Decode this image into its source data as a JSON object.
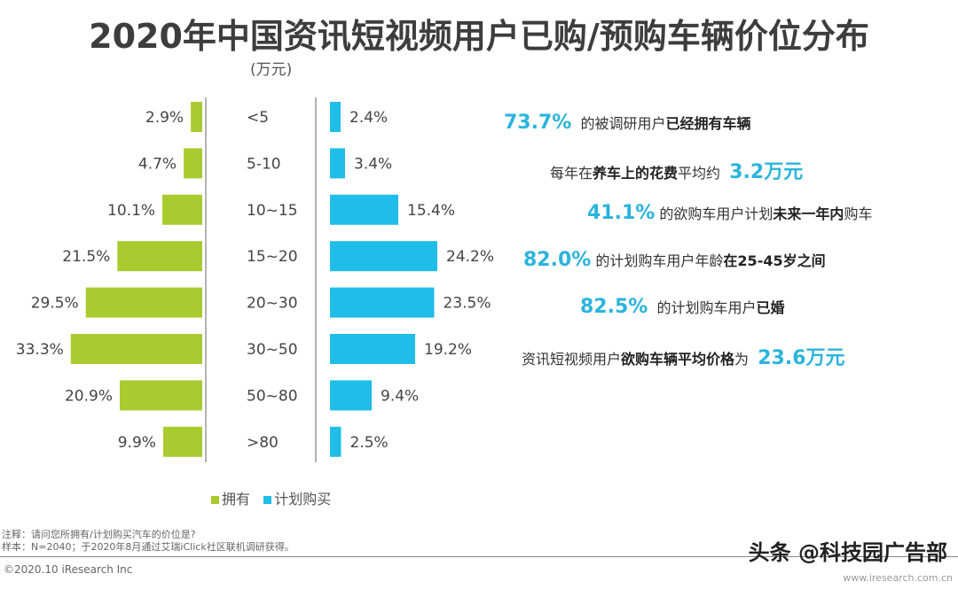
{
  "title": "2020年中国资讯短视频用户已购/预购车辆价位分布",
  "chart_data": {
    "type": "bar",
    "orientation": "horizontal-butterfly",
    "title": "2020年中国资讯短视频用户已购/预购车辆价位分布",
    "unit_label": "(万元)",
    "categories": [
      "<5",
      "5-10",
      "10~15",
      "15~20",
      "20~30",
      "30~50",
      "50~80",
      ">80"
    ],
    "series": [
      {
        "name": "拥有",
        "color": "#a9cb2f",
        "direction": "left",
        "values": [
          2.9,
          4.7,
          10.1,
          21.5,
          29.5,
          33.3,
          20.9,
          9.9
        ],
        "labels": [
          "2.9%",
          "4.7%",
          "10.1%",
          "21.5%",
          "29.5%",
          "33.3%",
          "20.9%",
          "9.9%"
        ]
      },
      {
        "name": "计划购买",
        "color": "#1fbde8",
        "direction": "right",
        "values": [
          2.4,
          3.4,
          15.4,
          24.2,
          23.5,
          19.2,
          9.4,
          2.5
        ],
        "labels": [
          "2.4%",
          "3.4%",
          "15.4%",
          "24.2%",
          "23.5%",
          "19.2%",
          "9.4%",
          "2.5%"
        ]
      }
    ],
    "legend_position": "bottom",
    "grid": false
  },
  "facts": [
    [
      {
        "t": "73.7%",
        "s": "hl"
      },
      {
        "t": "  的被调研用户",
        "s": ""
      },
      {
        "t": "已经拥有车辆",
        "s": "b"
      }
    ],
    [
      {
        "t": "每年在",
        "s": ""
      },
      {
        "t": "养车上的花费",
        "s": "b"
      },
      {
        "t": "平均约  ",
        "s": ""
      },
      {
        "t": "3.2万元",
        "s": "hl"
      }
    ],
    [
      {
        "t": "41.1%",
        "s": "hl"
      },
      {
        "t": " 的欲购车用户计划",
        "s": ""
      },
      {
        "t": "未来一年内",
        "s": "b"
      },
      {
        "t": "购车",
        "s": ""
      }
    ],
    [
      {
        "t": "82.0%",
        "s": "hl"
      },
      {
        "t": " 的计划购车用户年龄",
        "s": ""
      },
      {
        "t": "在25-45岁之间",
        "s": "b"
      }
    ],
    [
      {
        "t": "82.5%",
        "s": "hl"
      },
      {
        "t": "  的计划购车用户",
        "s": ""
      },
      {
        "t": "已婚",
        "s": "b"
      }
    ],
    [
      {
        "t": "资讯短视频用户",
        "s": ""
      },
      {
        "t": "欲购车辆平均价格",
        "s": "b"
      },
      {
        "t": "为  ",
        "s": ""
      },
      {
        "t": "23.6万元",
        "s": "hl"
      }
    ]
  ],
  "notes": {
    "note": "注释：请问您所拥有/计划购买汽车的价位是?",
    "sample": "样本：N=2040；于2020年8月通过艾瑞iClick社区联机调研获得。"
  },
  "footer": {
    "copyright": "©2020.10 iResearch Inc",
    "site": "www.iresearch.com.cn",
    "watermark": "头条 @科技园广告部"
  }
}
